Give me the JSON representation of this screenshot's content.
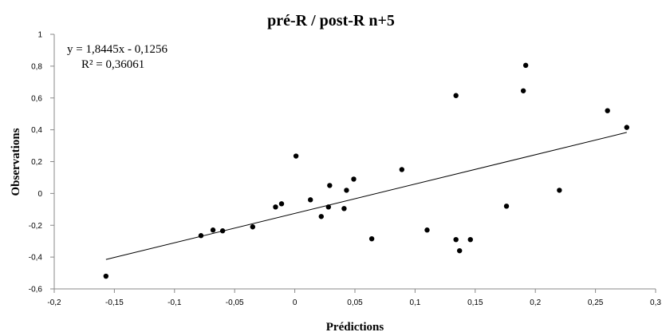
{
  "chart_data": {
    "type": "scatter",
    "title": "pré-R / post-R n+5",
    "xlabel": "Prédictions",
    "ylabel": "Observations",
    "xlim": [
      -0.2,
      0.3
    ],
    "ylim": [
      -0.6,
      1.0
    ],
    "x_ticks": [
      -0.2,
      -0.15,
      -0.1,
      -0.05,
      0,
      0.05,
      0.1,
      0.15,
      0.2,
      0.25,
      0.3
    ],
    "x_tick_labels": [
      "-0,2",
      "-0,15",
      "-0,1",
      "-0,05",
      "0",
      "0,05",
      "0,1",
      "0,15",
      "0,2",
      "0,25",
      "0,3"
    ],
    "y_ticks": [
      -0.6,
      -0.4,
      -0.2,
      0,
      0.2,
      0.4,
      0.6,
      0.8,
      1.0
    ],
    "y_tick_labels": [
      "-0,6",
      "-0,4",
      "-0,2",
      "0",
      "0,2",
      "0,4",
      "0,6",
      "0,8",
      "1"
    ],
    "grid": false,
    "legend": "none",
    "points": [
      {
        "x": -0.157,
        "y": -0.52
      },
      {
        "x": -0.078,
        "y": -0.265
      },
      {
        "x": -0.068,
        "y": -0.23
      },
      {
        "x": -0.06,
        "y": -0.235
      },
      {
        "x": -0.035,
        "y": -0.21
      },
      {
        "x": -0.016,
        "y": -0.085
      },
      {
        "x": -0.011,
        "y": -0.065
      },
      {
        "x": 0.001,
        "y": 0.235
      },
      {
        "x": 0.013,
        "y": -0.04
      },
      {
        "x": 0.022,
        "y": -0.145
      },
      {
        "x": 0.028,
        "y": -0.085
      },
      {
        "x": 0.029,
        "y": 0.05
      },
      {
        "x": 0.041,
        "y": -0.095
      },
      {
        "x": 0.043,
        "y": 0.02
      },
      {
        "x": 0.049,
        "y": 0.09
      },
      {
        "x": 0.064,
        "y": -0.285
      },
      {
        "x": 0.089,
        "y": 0.15
      },
      {
        "x": 0.11,
        "y": -0.23
      },
      {
        "x": 0.134,
        "y": 0.615
      },
      {
        "x": 0.134,
        "y": -0.29
      },
      {
        "x": 0.137,
        "y": -0.36
      },
      {
        "x": 0.146,
        "y": -0.29
      },
      {
        "x": 0.176,
        "y": -0.08
      },
      {
        "x": 0.19,
        "y": 0.645
      },
      {
        "x": 0.192,
        "y": 0.805
      },
      {
        "x": 0.22,
        "y": 0.02
      },
      {
        "x": 0.26,
        "y": 0.52
      },
      {
        "x": 0.276,
        "y": 0.415
      }
    ],
    "trendline": {
      "type": "linear",
      "slope": 1.8445,
      "intercept": -0.1256,
      "x_range": [
        -0.157,
        0.276
      ],
      "equation_label": "y = 1,8445x - 0,1256",
      "r2_label": "R² = 0,36061"
    }
  }
}
